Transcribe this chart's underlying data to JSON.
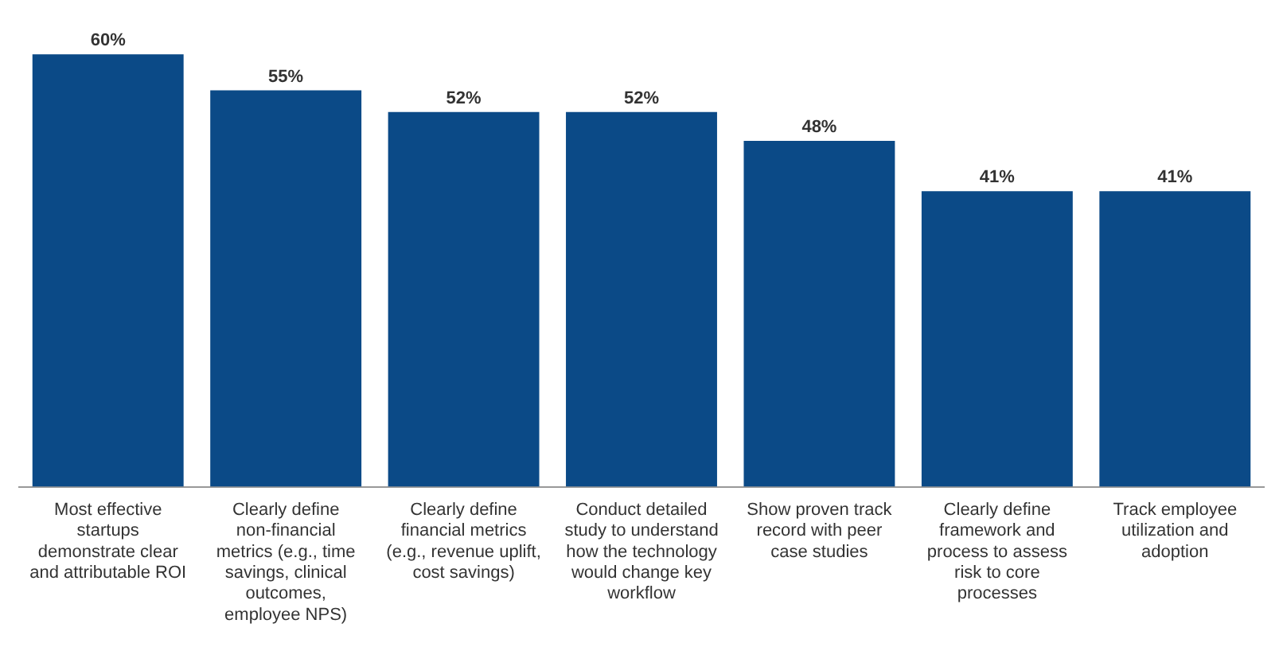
{
  "chart_data": {
    "type": "bar",
    "categories": [
      "Most effective startups demonstrate clear and attributable ROI",
      "Clearly define non-financial metrics (e.g., time savings, clinical outcomes, employee NPS)",
      "Clearly define financial metrics (e.g., revenue uplift, cost savings)",
      "Conduct detailed study to understand how the technology would change key workflow",
      "Show proven track record with peer case studies",
      "Clearly define framework and process to assess risk to core processes",
      "Track employee utilization and adoption"
    ],
    "values": [
      60,
      55,
      52,
      52,
      48,
      41,
      41
    ],
    "value_labels": [
      "60%",
      "55%",
      "52%",
      "52%",
      "48%",
      "41%",
      "41%"
    ],
    "color": "#0b4a87",
    "tick_labels": "x",
    "grid": false,
    "legend": false
  }
}
